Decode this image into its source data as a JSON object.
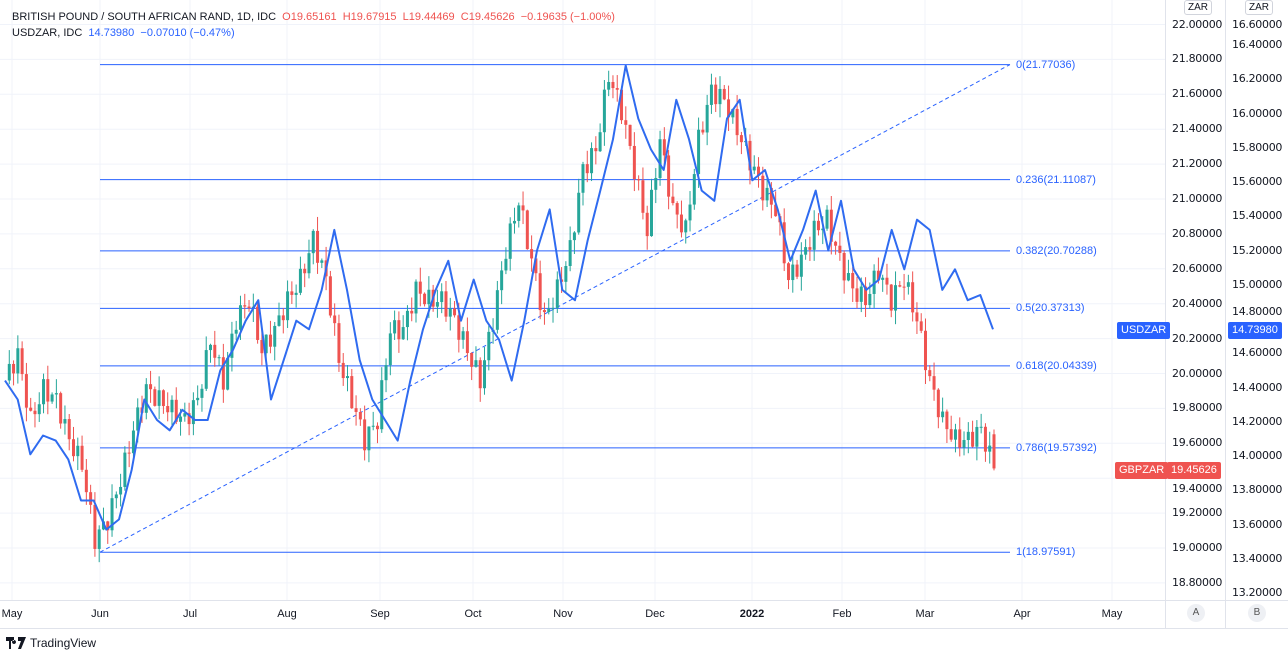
{
  "legend": {
    "main_title": "BRITISH POUND / SOUTH AFRICAN RAND, 1D, IDC",
    "open": "O19.65161",
    "high": "H19.67915",
    "low": "L19.44469",
    "close": "C19.45626",
    "change": "−0.19635 (−1.00%)",
    "second_title": "USDZAR, IDC",
    "second_value": "14.73980",
    "second_change": "−0.07010 (−0.47%)"
  },
  "axes": {
    "currency_a": "ZAR",
    "currency_b": "ZAR",
    "scale_a_button": "A",
    "scale_b_button": "B"
  },
  "tags": {
    "usdzar_label": "USDZAR",
    "usdzar_value": "14.73980",
    "gbpzar_label": "GBPZAR",
    "gbpzar_value": "19.45626"
  },
  "footer": {
    "brand": "TradingView"
  },
  "colors": {
    "up": "#26a69a",
    "down": "#ef5350",
    "line": "#2962ff",
    "fib": "#2962ff"
  },
  "chart_data": {
    "type": "candlestick+line",
    "time_labels": [
      "May",
      "Jun",
      "Jul",
      "Aug",
      "Sep",
      "Oct",
      "Nov",
      "Dec",
      "2022",
      "Feb",
      "Mar",
      "Apr",
      "May"
    ],
    "axis_a": {
      "series": "GBPZAR",
      "ticks": [
        "18.80000",
        "19.00000",
        "19.20000",
        "19.40000",
        "19.60000",
        "19.80000",
        "20.00000",
        "20.20000",
        "20.40000",
        "20.60000",
        "20.80000",
        "21.00000",
        "21.20000",
        "21.40000",
        "21.60000",
        "21.80000",
        "22.00000"
      ],
      "range": [
        18.7,
        22.1
      ]
    },
    "axis_b": {
      "series": "USDZAR",
      "ticks": [
        "13.20000",
        "13.40000",
        "13.60000",
        "13.80000",
        "14.00000",
        "14.20000",
        "14.40000",
        "14.60000",
        "14.80000",
        "15.00000",
        "15.20000",
        "15.40000",
        "15.60000",
        "15.80000",
        "16.00000",
        "16.20000",
        "16.40000",
        "16.60000"
      ],
      "range": [
        13.1,
        16.7
      ]
    },
    "gbpzar_closes": [
      19.96,
      20.11,
      19.73,
      19.91,
      19.85,
      19.62,
      19.48,
      19.05,
      19.16,
      19.39,
      19.68,
      19.91,
      19.85,
      19.79,
      19.73,
      19.85,
      20.19,
      19.96,
      20.31,
      20.42,
      20.13,
      20.25,
      20.42,
      20.54,
      20.77,
      20.54,
      20.08,
      19.85,
      19.62,
      19.73,
      20.25,
      20.25,
      20.48,
      20.42,
      20.42,
      20.31,
      20.13,
      19.96,
      20.31,
      20.71,
      20.99,
      20.65,
      20.31,
      20.48,
      20.71,
      21.17,
      21.28,
      21.71,
      21.51,
      21.17,
      20.82,
      21.34,
      20.94,
      20.82,
      21.34,
      21.62,
      21.57,
      21.4,
      21.22,
      21.05,
      20.94,
      20.54,
      20.65,
      20.82,
      20.88,
      20.65,
      20.48,
      20.42,
      20.59,
      20.42,
      20.54,
      20.31,
      19.96,
      19.73,
      19.62,
      19.62,
      19.68,
      19.456
    ],
    "usdzar_closes": [
      14.44,
      14.33,
      14.01,
      14.12,
      14.09,
      13.98,
      13.74,
      13.74,
      13.57,
      13.63,
      13.92,
      14.33,
      14.21,
      14.15,
      14.27,
      14.21,
      14.21,
      14.5,
      14.62,
      14.79,
      14.91,
      14.33,
      14.56,
      14.79,
      14.74,
      14.97,
      15.32,
      14.97,
      14.56,
      14.33,
      14.21,
      14.09,
      14.44,
      14.74,
      14.97,
      15.14,
      14.79,
      15.03,
      14.79,
      14.68,
      14.44,
      14.79,
      15.2,
      15.44,
      14.97,
      14.91,
      15.26,
      15.55,
      15.85,
      16.28,
      15.97,
      15.79,
      15.67,
      16.08,
      15.85,
      15.55,
      15.49,
      15.97,
      16.08,
      15.61,
      15.67,
      15.44,
      15.14,
      15.32,
      15.55,
      15.2,
      15.49,
      15.09,
      14.97,
      15.03,
      15.32,
      15.09,
      15.38,
      15.32,
      14.97,
      15.09,
      14.91,
      14.94,
      14.74
    ],
    "fib_levels": [
      {
        "ratio": "0",
        "value": 21.77036,
        "label": "0(21.77036)"
      },
      {
        "ratio": "0.236",
        "value": 21.11087,
        "label": "0.236(21.11087)"
      },
      {
        "ratio": "0.382",
        "value": 20.70288,
        "label": "0.382(20.70288)"
      },
      {
        "ratio": "0.5",
        "value": 20.37313,
        "label": "0.5(20.37313)"
      },
      {
        "ratio": "0.618",
        "value": 20.04339,
        "label": "0.618(20.04339)"
      },
      {
        "ratio": "0.786",
        "value": 19.57392,
        "label": "0.786(19.57392)"
      },
      {
        "ratio": "1",
        "value": 18.97591,
        "label": "1(18.97591)"
      }
    ]
  }
}
